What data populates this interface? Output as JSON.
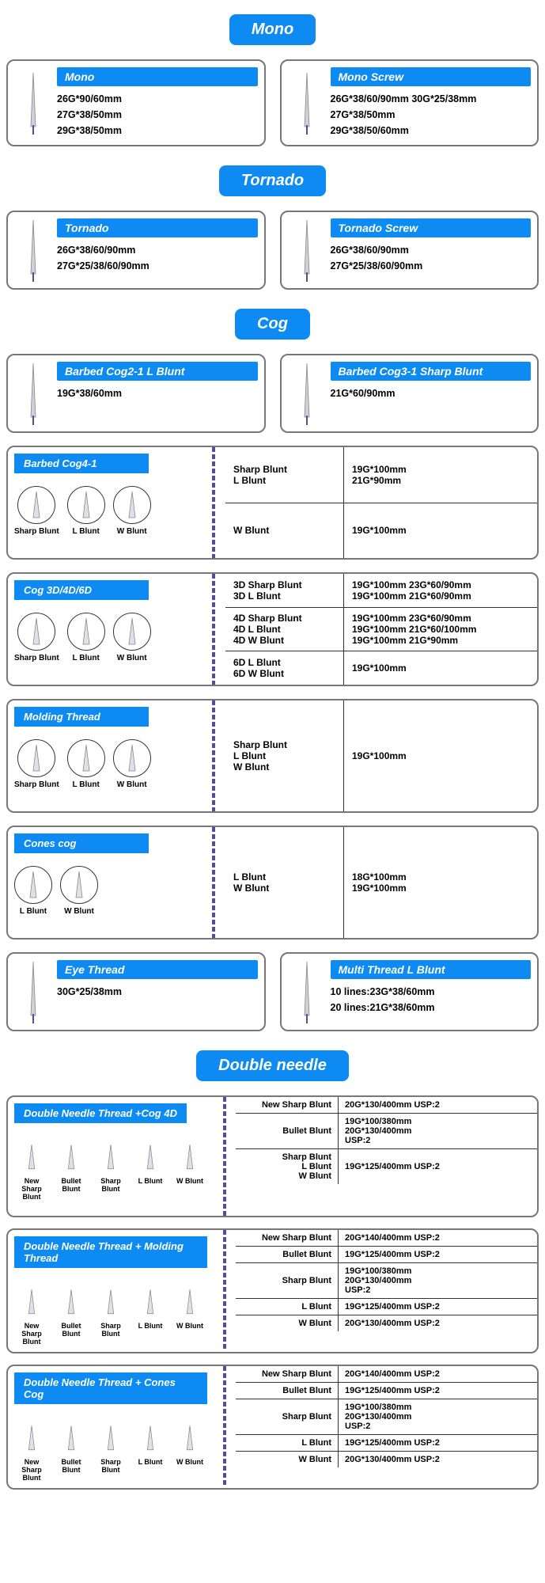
{
  "colors": {
    "primary": "#0d8bf2",
    "border": "#777",
    "thread": "#5b4a9c"
  },
  "sections": {
    "mono": {
      "title": "Mono",
      "cards": [
        {
          "name": "Mono",
          "specs": [
            "26G*90/60mm",
            "27G*38/50mm",
            "29G*38/50mm"
          ]
        },
        {
          "name": "Mono Screw",
          "specs": [
            "26G*38/60/90mm 30G*25/38mm",
            "27G*38/50mm",
            "29G*38/50/60mm"
          ]
        }
      ]
    },
    "tornado": {
      "title": "Tornado",
      "cards": [
        {
          "name": "Tornado",
          "specs": [
            "26G*38/60/90mm",
            "27G*25/38/60/90mm"
          ]
        },
        {
          "name": "Tornado Screw",
          "specs": [
            "26G*38/60/90mm",
            "27G*25/38/60/90mm"
          ]
        }
      ]
    },
    "cog": {
      "title": "Cog",
      "topcards": [
        {
          "name": "Barbed Cog2-1 L Blunt",
          "specs": [
            "19G*38/60mm"
          ]
        },
        {
          "name": "Barbed Cog3-1 Sharp Blunt",
          "specs": [
            "21G*60/90mm"
          ]
        }
      ],
      "wide": [
        {
          "name": "Barbed Cog4-1",
          "tips": [
            "Sharp Blunt",
            "L Blunt",
            "W Blunt"
          ],
          "rows": [
            {
              "c1": [
                "Sharp Blunt",
                "L Blunt"
              ],
              "c2": [
                "19G*100mm",
                "21G*90mm"
              ]
            },
            {
              "c1": [
                "W Blunt"
              ],
              "c2": [
                "19G*100mm"
              ]
            }
          ]
        },
        {
          "name": "Cog 3D/4D/6D",
          "tips": [
            "Sharp Blunt",
            "L Blunt",
            "W Blunt"
          ],
          "rows": [
            {
              "c1": [
                "3D Sharp Blunt",
                "3D L Blunt"
              ],
              "c2": [
                "19G*100mm 23G*60/90mm",
                "19G*100mm 21G*60/90mm"
              ]
            },
            {
              "c1": [
                "4D Sharp Blunt",
                "4D L Blunt",
                "4D W Blunt"
              ],
              "c2": [
                "19G*100mm 23G*60/90mm",
                "19G*100mm 21G*60/100mm",
                "19G*100mm 21G*90mm"
              ]
            },
            {
              "c1": [
                "6D L Blunt",
                "6D W Blunt"
              ],
              "c2": [
                "19G*100mm"
              ]
            }
          ]
        },
        {
          "name": "Molding Thread",
          "tips": [
            "Sharp Blunt",
            "L Blunt",
            "W Blunt"
          ],
          "rows": [
            {
              "c1": [
                "Sharp Blunt",
                "L Blunt",
                "W Blunt"
              ],
              "c2": [
                "19G*100mm"
              ]
            }
          ]
        },
        {
          "name": "Cones cog",
          "tips": [
            "L Blunt",
            "W Blunt"
          ],
          "rows": [
            {
              "c1": [
                "L Blunt",
                "W Blunt"
              ],
              "c2": [
                "18G*100mm",
                "19G*100mm"
              ]
            }
          ]
        }
      ],
      "bottomcards": [
        {
          "name": "Eye Thread",
          "specs": [
            "30G*25/38mm"
          ]
        },
        {
          "name": "Multi Thread L Blunt",
          "specs": [
            "10 lines:23G*38/60mm",
            "20 lines:21G*38/60mm"
          ]
        }
      ]
    },
    "double": {
      "title": "Double needle",
      "tips": [
        "New Sharp Blunt",
        "Bullet Blunt",
        "Sharp Blunt",
        "L Blunt",
        "W Blunt"
      ],
      "cards": [
        {
          "name": "Double Needle Thread +Cog 4D",
          "rows": [
            {
              "c1": [
                "New Sharp Blunt"
              ],
              "c2": [
                "20G*130/400mm USP:2"
              ]
            },
            {
              "c1": [
                "Bullet Blunt"
              ],
              "c2": [
                "19G*100/380mm",
                "20G*130/400mm",
                "USP:2"
              ]
            },
            {
              "c1": [
                "Sharp Blunt",
                "L Blunt",
                "W Blunt"
              ],
              "c2": [
                "19G*125/400mm USP:2"
              ]
            }
          ]
        },
        {
          "name": "Double Needle Thread + Molding Thread",
          "rows": [
            {
              "c1": [
                "New Sharp Blunt"
              ],
              "c2": [
                "20G*140/400mm USP:2"
              ]
            },
            {
              "c1": [
                "Bullet Blunt"
              ],
              "c2": [
                "19G*125/400mm USP:2"
              ]
            },
            {
              "c1": [
                "Sharp Blunt"
              ],
              "c2": [
                "19G*100/380mm",
                "20G*130/400mm",
                "USP:2"
              ]
            },
            {
              "c1": [
                "L Blunt"
              ],
              "c2": [
                "19G*125/400mm USP:2"
              ]
            },
            {
              "c1": [
                "W Blunt"
              ],
              "c2": [
                "20G*130/400mm USP:2"
              ]
            }
          ]
        },
        {
          "name": "Double Needle Thread + Cones Cog",
          "rows": [
            {
              "c1": [
                "New Sharp Blunt"
              ],
              "c2": [
                "20G*140/400mm USP:2"
              ]
            },
            {
              "c1": [
                "Bullet Blunt"
              ],
              "c2": [
                "19G*125/400mm USP:2"
              ]
            },
            {
              "c1": [
                "Sharp Blunt"
              ],
              "c2": [
                "19G*100/380mm",
                "20G*130/400mm",
                "USP:2"
              ]
            },
            {
              "c1": [
                "L Blunt"
              ],
              "c2": [
                "19G*125/400mm USP:2"
              ]
            },
            {
              "c1": [
                "W Blunt"
              ],
              "c2": [
                "20G*130/400mm USP:2"
              ]
            }
          ]
        }
      ]
    }
  }
}
